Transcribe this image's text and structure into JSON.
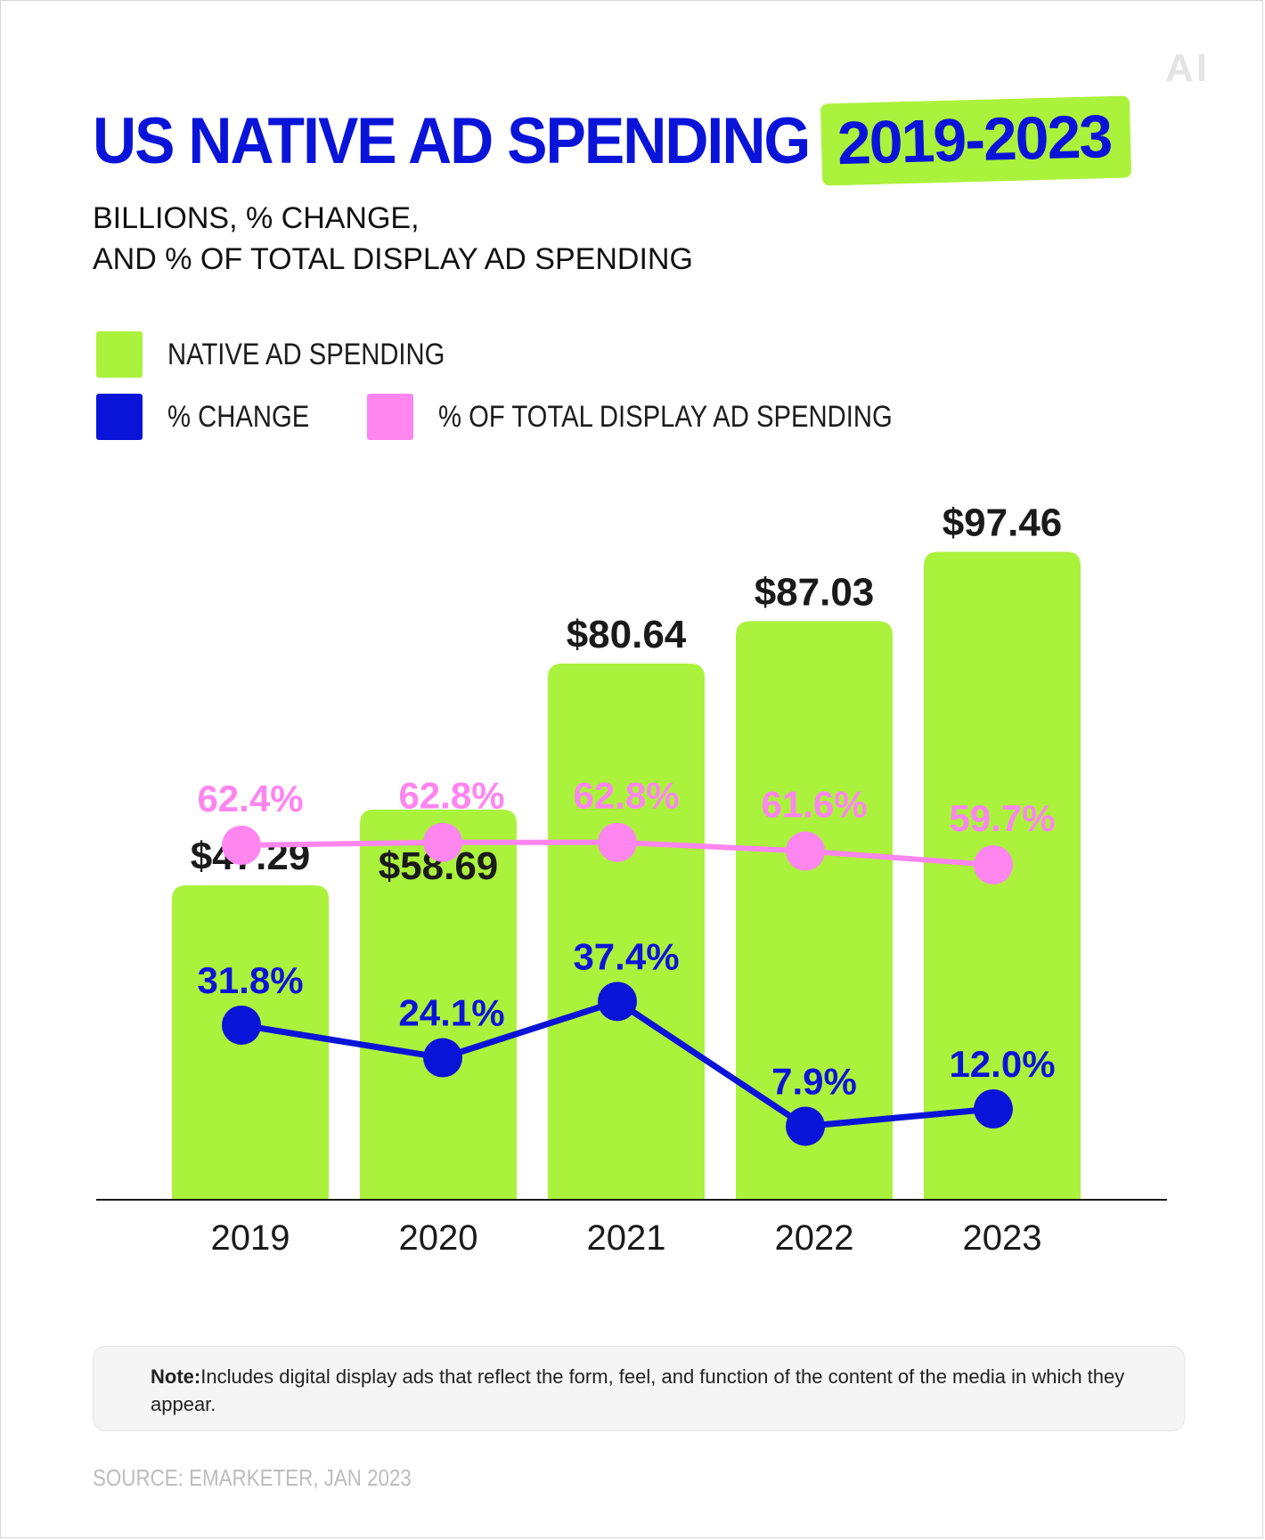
{
  "brand": {
    "logo_text": "AI"
  },
  "title": {
    "main": "US NATIVE AD SPENDING",
    "years": "2019-2023"
  },
  "subtitle": {
    "line1": "BILLIONS, % CHANGE,",
    "line2": "AND % OF TOTAL DISPLAY AD SPENDING"
  },
  "legend": {
    "native": "NATIVE AD SPENDING",
    "change": "% CHANGE",
    "share": "% OF TOTAL DISPLAY AD SPENDING"
  },
  "colors": {
    "bar": "#abf23d",
    "change": "#0a14d8",
    "share": "#ff85ef",
    "value_label": "#1a1a1a",
    "axis": "#1a1a1a"
  },
  "chart_data": {
    "type": "bar",
    "categories": [
      "2019",
      "2020",
      "2021",
      "2022",
      "2023"
    ],
    "series": [
      {
        "name": "NATIVE AD SPENDING",
        "type": "bar",
        "values": [
          47.29,
          58.69,
          80.64,
          87.03,
          97.46
        ],
        "labels": [
          "$47.29",
          "$58.69",
          "$80.64",
          "$87.03",
          "$97.46"
        ]
      },
      {
        "name": "% CHANGE",
        "type": "line",
        "values": [
          31.8,
          24.1,
          37.4,
          7.9,
          12.0
        ],
        "labels": [
          "31.8%",
          "24.1%",
          "37.4%",
          "7.9%",
          "12.0%"
        ]
      },
      {
        "name": "% OF TOTAL DISPLAY AD SPENDING",
        "type": "line",
        "values": [
          62.4,
          62.8,
          62.8,
          61.6,
          59.7
        ],
        "labels": [
          "62.4%",
          "62.8%",
          "62.8%",
          "61.6%",
          "59.7%"
        ]
      }
    ],
    "legend_position": "top-left",
    "grid": false
  },
  "note": {
    "label": "Note:",
    "text": "Includes digital display ads that reflect the form, feel, and function of the content of the media in which they appear."
  },
  "source": "SOURCE: EMARKETER, JAN 2023"
}
